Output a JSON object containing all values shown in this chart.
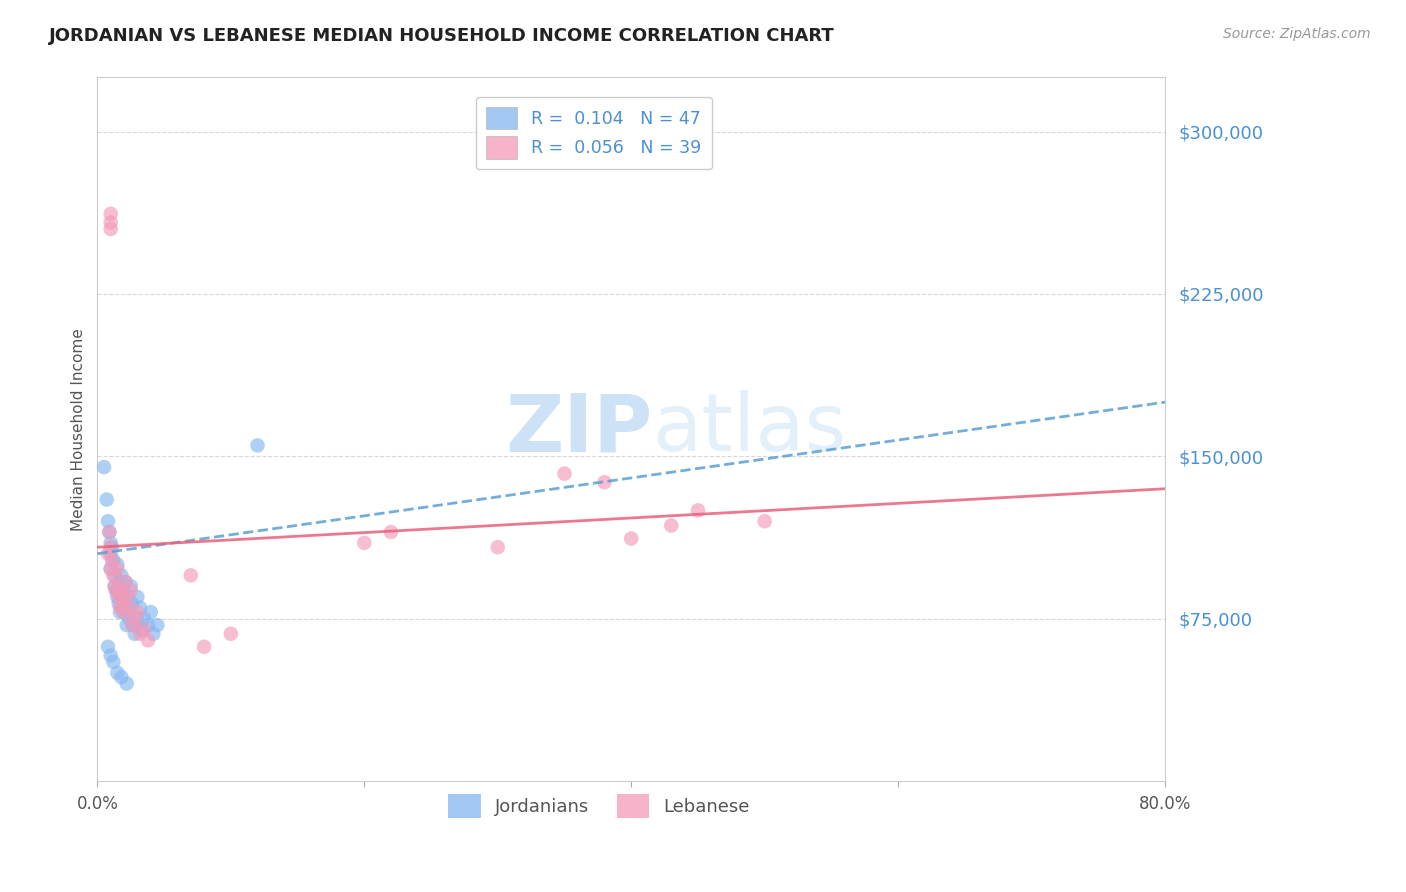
{
  "title": "JORDANIAN VS LEBANESE MEDIAN HOUSEHOLD INCOME CORRELATION CHART",
  "source": "Source: ZipAtlas.com",
  "ylabel": "Median Household Income",
  "xlim": [
    0.0,
    0.8
  ],
  "ylim": [
    0,
    325000
  ],
  "yticks": [
    0,
    75000,
    150000,
    225000,
    300000
  ],
  "xticks": [
    0.0,
    0.2,
    0.4,
    0.6,
    0.8
  ],
  "ytick_labels": [
    "",
    "$75,000",
    "$150,000",
    "$225,000",
    "$300,000"
  ],
  "background_color": "#ffffff",
  "grid_color": "#c8c8c8",
  "jordanian_color": "#85b8f0",
  "lebanese_color": "#f49ab8",
  "jordanian_trend_color": "#5a9fd4",
  "lebanese_trend_color": "#e8607a",
  "watermark": "ZIPatlas",
  "watermark_color": "#daeaf8",
  "legend_jordanian_label": "R =  0.104   N = 47",
  "legend_lebanese_label": "R =  0.056   N = 39",
  "legend_label_jordanians": "Jordanians",
  "legend_label_lebanese": "Lebanese",
  "jordanian_x": [
    0.005,
    0.007,
    0.008,
    0.009,
    0.01,
    0.01,
    0.01,
    0.011,
    0.012,
    0.013,
    0.013,
    0.014,
    0.015,
    0.015,
    0.016,
    0.016,
    0.017,
    0.018,
    0.018,
    0.019,
    0.02,
    0.02,
    0.021,
    0.022,
    0.022,
    0.023,
    0.024,
    0.025,
    0.026,
    0.027,
    0.028,
    0.03,
    0.03,
    0.032,
    0.033,
    0.035,
    0.038,
    0.04,
    0.042,
    0.045,
    0.008,
    0.01,
    0.012,
    0.015,
    0.018,
    0.022,
    0.12
  ],
  "jordanian_y": [
    145000,
    130000,
    120000,
    115000,
    110000,
    105000,
    98000,
    108000,
    102000,
    95000,
    90000,
    88000,
    85000,
    100000,
    92000,
    82000,
    78000,
    95000,
    85000,
    80000,
    88000,
    78000,
    92000,
    80000,
    72000,
    85000,
    75000,
    90000,
    82000,
    72000,
    68000,
    85000,
    75000,
    80000,
    70000,
    75000,
    72000,
    78000,
    68000,
    72000,
    62000,
    58000,
    55000,
    50000,
    48000,
    45000,
    155000
  ],
  "lebanese_x": [
    0.008,
    0.009,
    0.01,
    0.01,
    0.011,
    0.012,
    0.013,
    0.014,
    0.015,
    0.016,
    0.017,
    0.018,
    0.019,
    0.02,
    0.021,
    0.022,
    0.024,
    0.025,
    0.026,
    0.028,
    0.03,
    0.032,
    0.035,
    0.038,
    0.01,
    0.01,
    0.01,
    0.2,
    0.22,
    0.3,
    0.35,
    0.38,
    0.4,
    0.43,
    0.45,
    0.5,
    0.07,
    0.08,
    0.1
  ],
  "lebanese_y": [
    105000,
    115000,
    108000,
    98000,
    102000,
    95000,
    90000,
    88000,
    98000,
    85000,
    80000,
    88000,
    82000,
    78000,
    92000,
    85000,
    80000,
    88000,
    72000,
    75000,
    78000,
    68000,
    70000,
    65000,
    262000,
    258000,
    255000,
    110000,
    115000,
    108000,
    142000,
    138000,
    112000,
    118000,
    125000,
    120000,
    95000,
    62000,
    68000
  ]
}
